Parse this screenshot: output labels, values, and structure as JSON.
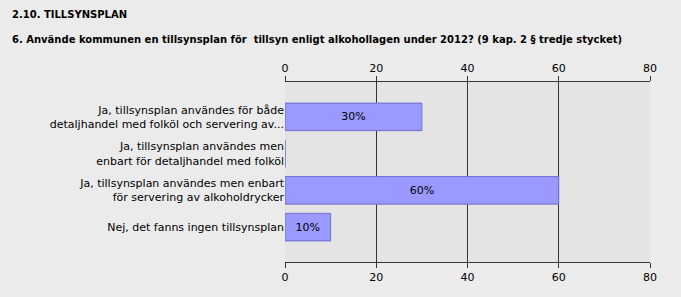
{
  "chart_data": {
    "type": "bar",
    "orientation": "horizontal",
    "title": "2.10. TILLSYNSPLAN",
    "subtitle": "6. Använde kommunen en tillsynsplan för  tillsyn enligt alkohollagen under 2012? (9 kap. 2 § tredje stycket)",
    "categories": [
      "Ja, tillsynsplan användes för både\ndetaljhandel med folköl och servering av...",
      "Ja, tillsynsplan användes men\nenbart för detaljhandel med folköl",
      "Ja, tillsynsplan användes men enbart\nför servering av alkoholdrycker",
      "Nej, det fanns ingen tillsynsplan"
    ],
    "values": [
      30,
      0,
      60,
      10
    ],
    "value_labels": [
      "30%",
      null,
      "60%",
      "10%"
    ],
    "data_labels": true,
    "color": "#9999ff",
    "xlim": [
      0,
      80
    ],
    "xticks": [
      0,
      20,
      40,
      60,
      80
    ],
    "grid": true
  }
}
